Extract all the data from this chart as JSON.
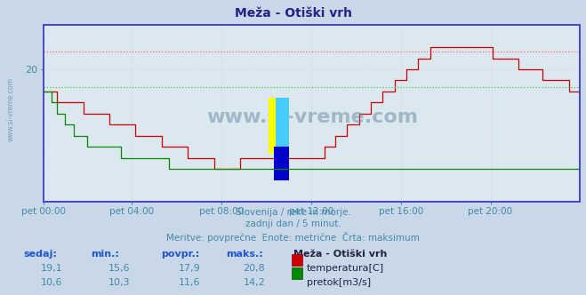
{
  "title": "Meža - Otiški vrh",
  "bg_color": "#c8d8e8",
  "plot_bg_color": "#dce8f0",
  "grid_color": "#e8d8e8",
  "x_labels": [
    "pet 00:00",
    "pet 04:00",
    "pet 08:00",
    "pet 12:00",
    "pet 16:00",
    "pet 20:00"
  ],
  "x_ticks_norm": [
    0.0,
    0.1667,
    0.3333,
    0.5,
    0.6667,
    0.8333
  ],
  "total_points": 288,
  "temp_color": "#cc0000",
  "flow_color": "#008800",
  "max_line_color_temp": "#ff6666",
  "max_line_color_flow": "#44cc44",
  "spine_color": "#4444cc",
  "text_color": "#4488aa",
  "title_color": "#222288",
  "subtitle1": "Slovenija / reke in morje.",
  "subtitle2": "zadnji dan / 5 minut.",
  "subtitle3": "Meritve: povprečne  Enote: metrične  Črta: maksimum",
  "table_headers": [
    "sedaj:",
    "min.:",
    "povpr.:",
    "maks.:"
  ],
  "temp_row": [
    "19,1",
    "15,6",
    "17,9",
    "20,8"
  ],
  "flow_row": [
    "10,6",
    "10,3",
    "11,6",
    "14,2"
  ],
  "legend_title": "Meža - Otiški vrh",
  "legend_temp": "temperatura[C]",
  "legend_flow": "pretok[m3/s]",
  "temp_max": 20.8,
  "temp_min": 15.6,
  "flow_max": 14.2,
  "flow_min": 10.3,
  "watermark": "www.si-vreme.com",
  "left_watermark": "www.si-vreme.com",
  "temp_ylim_min": 14.0,
  "temp_ylim_max": 22.0,
  "flow_ylim_min": 9.0,
  "flow_ylim_max": 17.0
}
